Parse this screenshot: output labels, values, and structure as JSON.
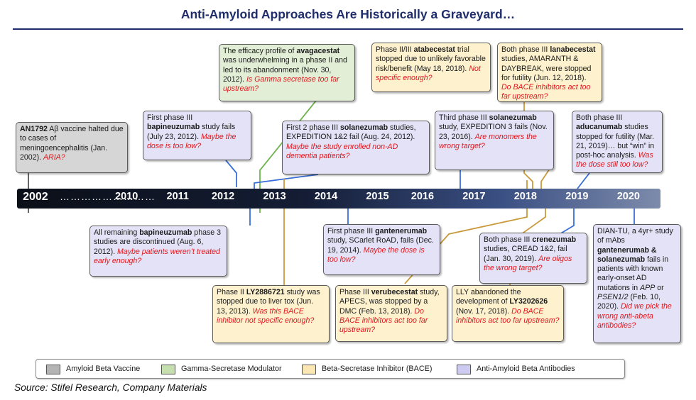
{
  "title": "Anti-Amyloid Approaches Are Historically a Graveyard…",
  "timeline": {
    "dots": "………………………",
    "years": [
      {
        "label": "2002",
        "pos": 0.02
      },
      {
        "label": "2010",
        "pos": 0.17
      },
      {
        "label": "2011",
        "pos": 0.25
      },
      {
        "label": "2012",
        "pos": 0.32
      },
      {
        "label": "2013",
        "pos": 0.4
      },
      {
        "label": "2014",
        "pos": 0.48
      },
      {
        "label": "2015",
        "pos": 0.56
      },
      {
        "label": "2016",
        "pos": 0.63
      },
      {
        "label": "2017",
        "pos": 0.71
      },
      {
        "label": "2018",
        "pos": 0.79
      },
      {
        "label": "2019",
        "pos": 0.87
      },
      {
        "label": "2020",
        "pos": 0.95
      }
    ]
  },
  "events": {
    "an1792": {
      "bold": "AN1792",
      "text": " Aβ vaccine halted due to cases of meningoencephalitis (Jan. 2002). ",
      "q": "ARIA?"
    },
    "avagacestat": {
      "pre": "The efficacy profile of ",
      "bold": "avagacestat",
      "text": " was underwhelming in a phase II and led to its abandonment (Nov. 30, 2012). ",
      "q": "Is Gamma secretase too far upstream?"
    },
    "bapi_fail": {
      "pre": "First phase III ",
      "bold": "bapineuzumab",
      "text": " study fails (July 23, 2012). ",
      "q": "Maybe the dose is too low?"
    },
    "sola_first": {
      "pre": "First 2 phase III ",
      "bold": "solanezumab",
      "text": " studies, EXPEDITION 1&2 fail (Aug. 24, 2012). ",
      "q": "Maybe the study enrolled non-AD dementia patients?"
    },
    "atabecestat": {
      "pre": "Phase II/III ",
      "bold": "atabecestat",
      "text": " trial stopped due to unlikely favorable risk/benefit (May 18, 2018). ",
      "q": "Not specific enough?"
    },
    "lanabecestat": {
      "pre": "Both phase III ",
      "bold": "lanabecestat",
      "text": " studies, AMARANTH & DAYBREAK, were stopped for futility (Jun. 12, 2018). ",
      "q": "Do BACE inhibitors act too far upstream?"
    },
    "sola_third": {
      "pre": "Third phase III ",
      "bold": "solanezumab",
      "text": " study, EXPEDITION 3 fails (Nov. 23, 2016). ",
      "q": "Are monomers the wrong target?"
    },
    "aducanumab": {
      "pre": "Both phase III ",
      "bold": "aducanumab",
      "text": " studies stopped for futility (Mar. 21, 2019)… but “win” in post-hoc analysis. ",
      "q": "Was the dose still too low?"
    },
    "bapi_disc": {
      "pre": "All remaining ",
      "bold": "bapineuzumab",
      "text": " phase 3 studies are discontinued (Aug. 6, 2012). ",
      "q": "Maybe patients weren’t treated early enough?"
    },
    "gantenerumab": {
      "pre": "First phase III ",
      "bold": "gantenerumab",
      "text": " study, SCarlet RoAD, fails (Dec. 19, 2014). ",
      "q": "Maybe the dose is too low?"
    },
    "crenezumab": {
      "pre": "Both phase III ",
      "bold": "crenezumab",
      "text": " studies, CREAD 1&2, fail (Jan. 30, 2019). ",
      "q": "Are oligos the wrong target?"
    },
    "dian_tu": {
      "pre": "DIAN-TU, a 4yr+ study of mAbs ",
      "bold": "gantenerumab & solanezumab",
      "text": " fails in patients with known early-onset AD mutations in ",
      "it1": "APP",
      "mid": " or ",
      "it2": "PSEN1/2",
      "end": " (Feb. 10, 2020). ",
      "q": "Did we pick the wrong anti-abeta antibodies?"
    },
    "ly2886721": {
      "pre": "Phase II ",
      "bold": "LY2886721",
      "text": " study was stopped due to liver tox (Jun. 13, 2013). ",
      "q": "Was this BACE inhibitor not specific enough?"
    },
    "verubecestat": {
      "pre": "Phase III ",
      "bold": "verubecestat",
      "text": " study, APECS, was stopped by a DMC (Feb. 13, 2018). ",
      "q": "Do BACE inhibitors act too far upstream?"
    },
    "ly3202626": {
      "pre": "LLY abandoned the development of ",
      "bold": "LY3202626",
      "text": " (Nov. 17, 2018). ",
      "q": "Do BACE inhibitors act too far upstream?"
    }
  },
  "legend": [
    {
      "label": "Amyloid Beta Vaccine",
      "color": "#b4b4b4"
    },
    {
      "label": "Gamma-Secretase Modulator",
      "color": "#c6dfae"
    },
    {
      "label": "Beta-Secretase Inhibitor (BACE)",
      "color": "#fbe7b3"
    },
    {
      "label": "Anti-Amyloid Beta Antibodies",
      "color": "#cdcbf1"
    }
  ],
  "colors": {
    "purple_line": "#3a6fd8",
    "green_line": "#70b450",
    "gold_line": "#c89a3c",
    "grey_line": "#333333"
  },
  "source": "Source: Stifel Research, Company Materials"
}
